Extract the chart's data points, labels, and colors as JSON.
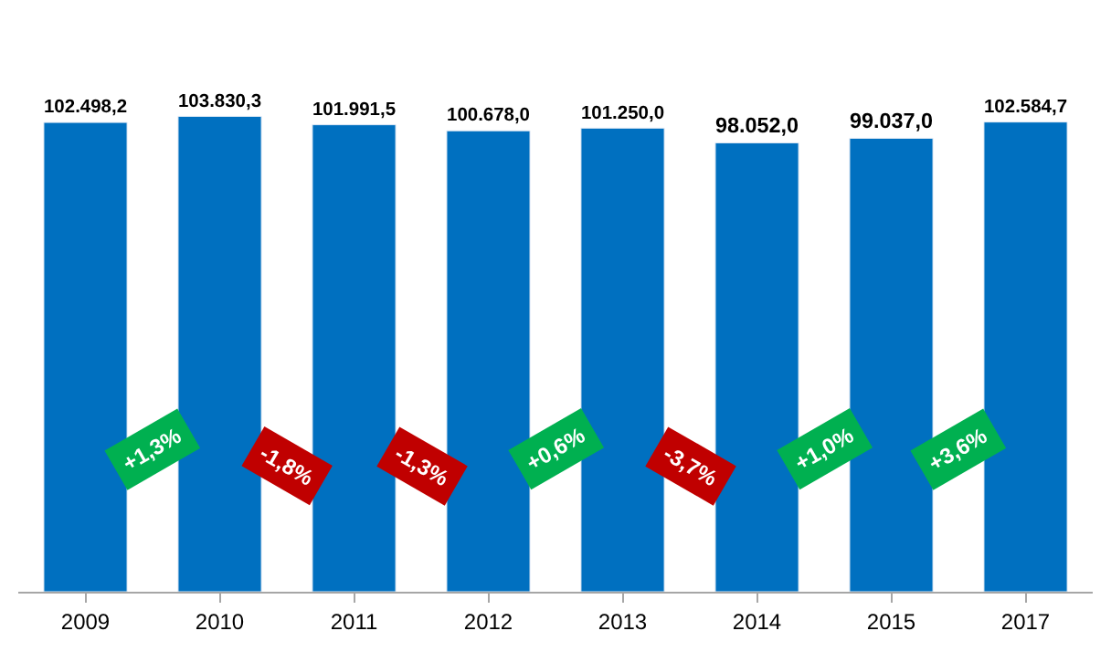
{
  "chart_data": {
    "type": "bar",
    "categories": [
      "2009",
      "2010",
      "2011",
      "2012",
      "2013",
      "2014",
      "2015",
      "2017"
    ],
    "values": [
      102498.2,
      103830.3,
      101991.5,
      100678.0,
      101250.0,
      98052.0,
      99037.0,
      102584.7
    ],
    "value_labels": [
      "102.498,2",
      "103.830,3",
      "101.991,5",
      "100.678,0",
      "101.250,0",
      "98.052,0",
      "99.037,0",
      "102.584,7"
    ],
    "color": "#0070c0",
    "tick_labels": "x",
    "annotations": [
      "+1,3%",
      "-1,8%",
      "-1,3%",
      "+0,6%",
      "-3,7%",
      "+1,0%",
      "+3,6%"
    ]
  }
}
